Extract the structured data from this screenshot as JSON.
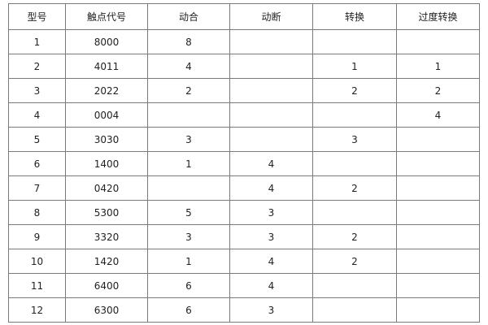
{
  "table": {
    "headers": [
      "型号",
      "触点代号",
      "动合",
      "动断",
      "转换",
      "过度转换"
    ],
    "rows": [
      [
        "1",
        "8000",
        "8",
        "",
        "",
        ""
      ],
      [
        "2",
        "4011",
        "4",
        "",
        "1",
        "1"
      ],
      [
        "3",
        "2022",
        "2",
        "",
        "2",
        "2"
      ],
      [
        "4",
        "0004",
        "",
        "",
        "",
        "4"
      ],
      [
        "5",
        "3030",
        "3",
        "",
        "3",
        ""
      ],
      [
        "6",
        "1400",
        "1",
        "4",
        "",
        ""
      ],
      [
        "7",
        "0420",
        "",
        "4",
        "2",
        ""
      ],
      [
        "8",
        "5300",
        "5",
        "3",
        "",
        ""
      ],
      [
        "9",
        "3320",
        "3",
        "3",
        "2",
        ""
      ],
      [
        "10",
        "1420",
        "1",
        "4",
        "2",
        ""
      ],
      [
        "11",
        "6400",
        "6",
        "4",
        "",
        ""
      ],
      [
        "12",
        "6300",
        "6",
        "3",
        "",
        ""
      ]
    ]
  }
}
